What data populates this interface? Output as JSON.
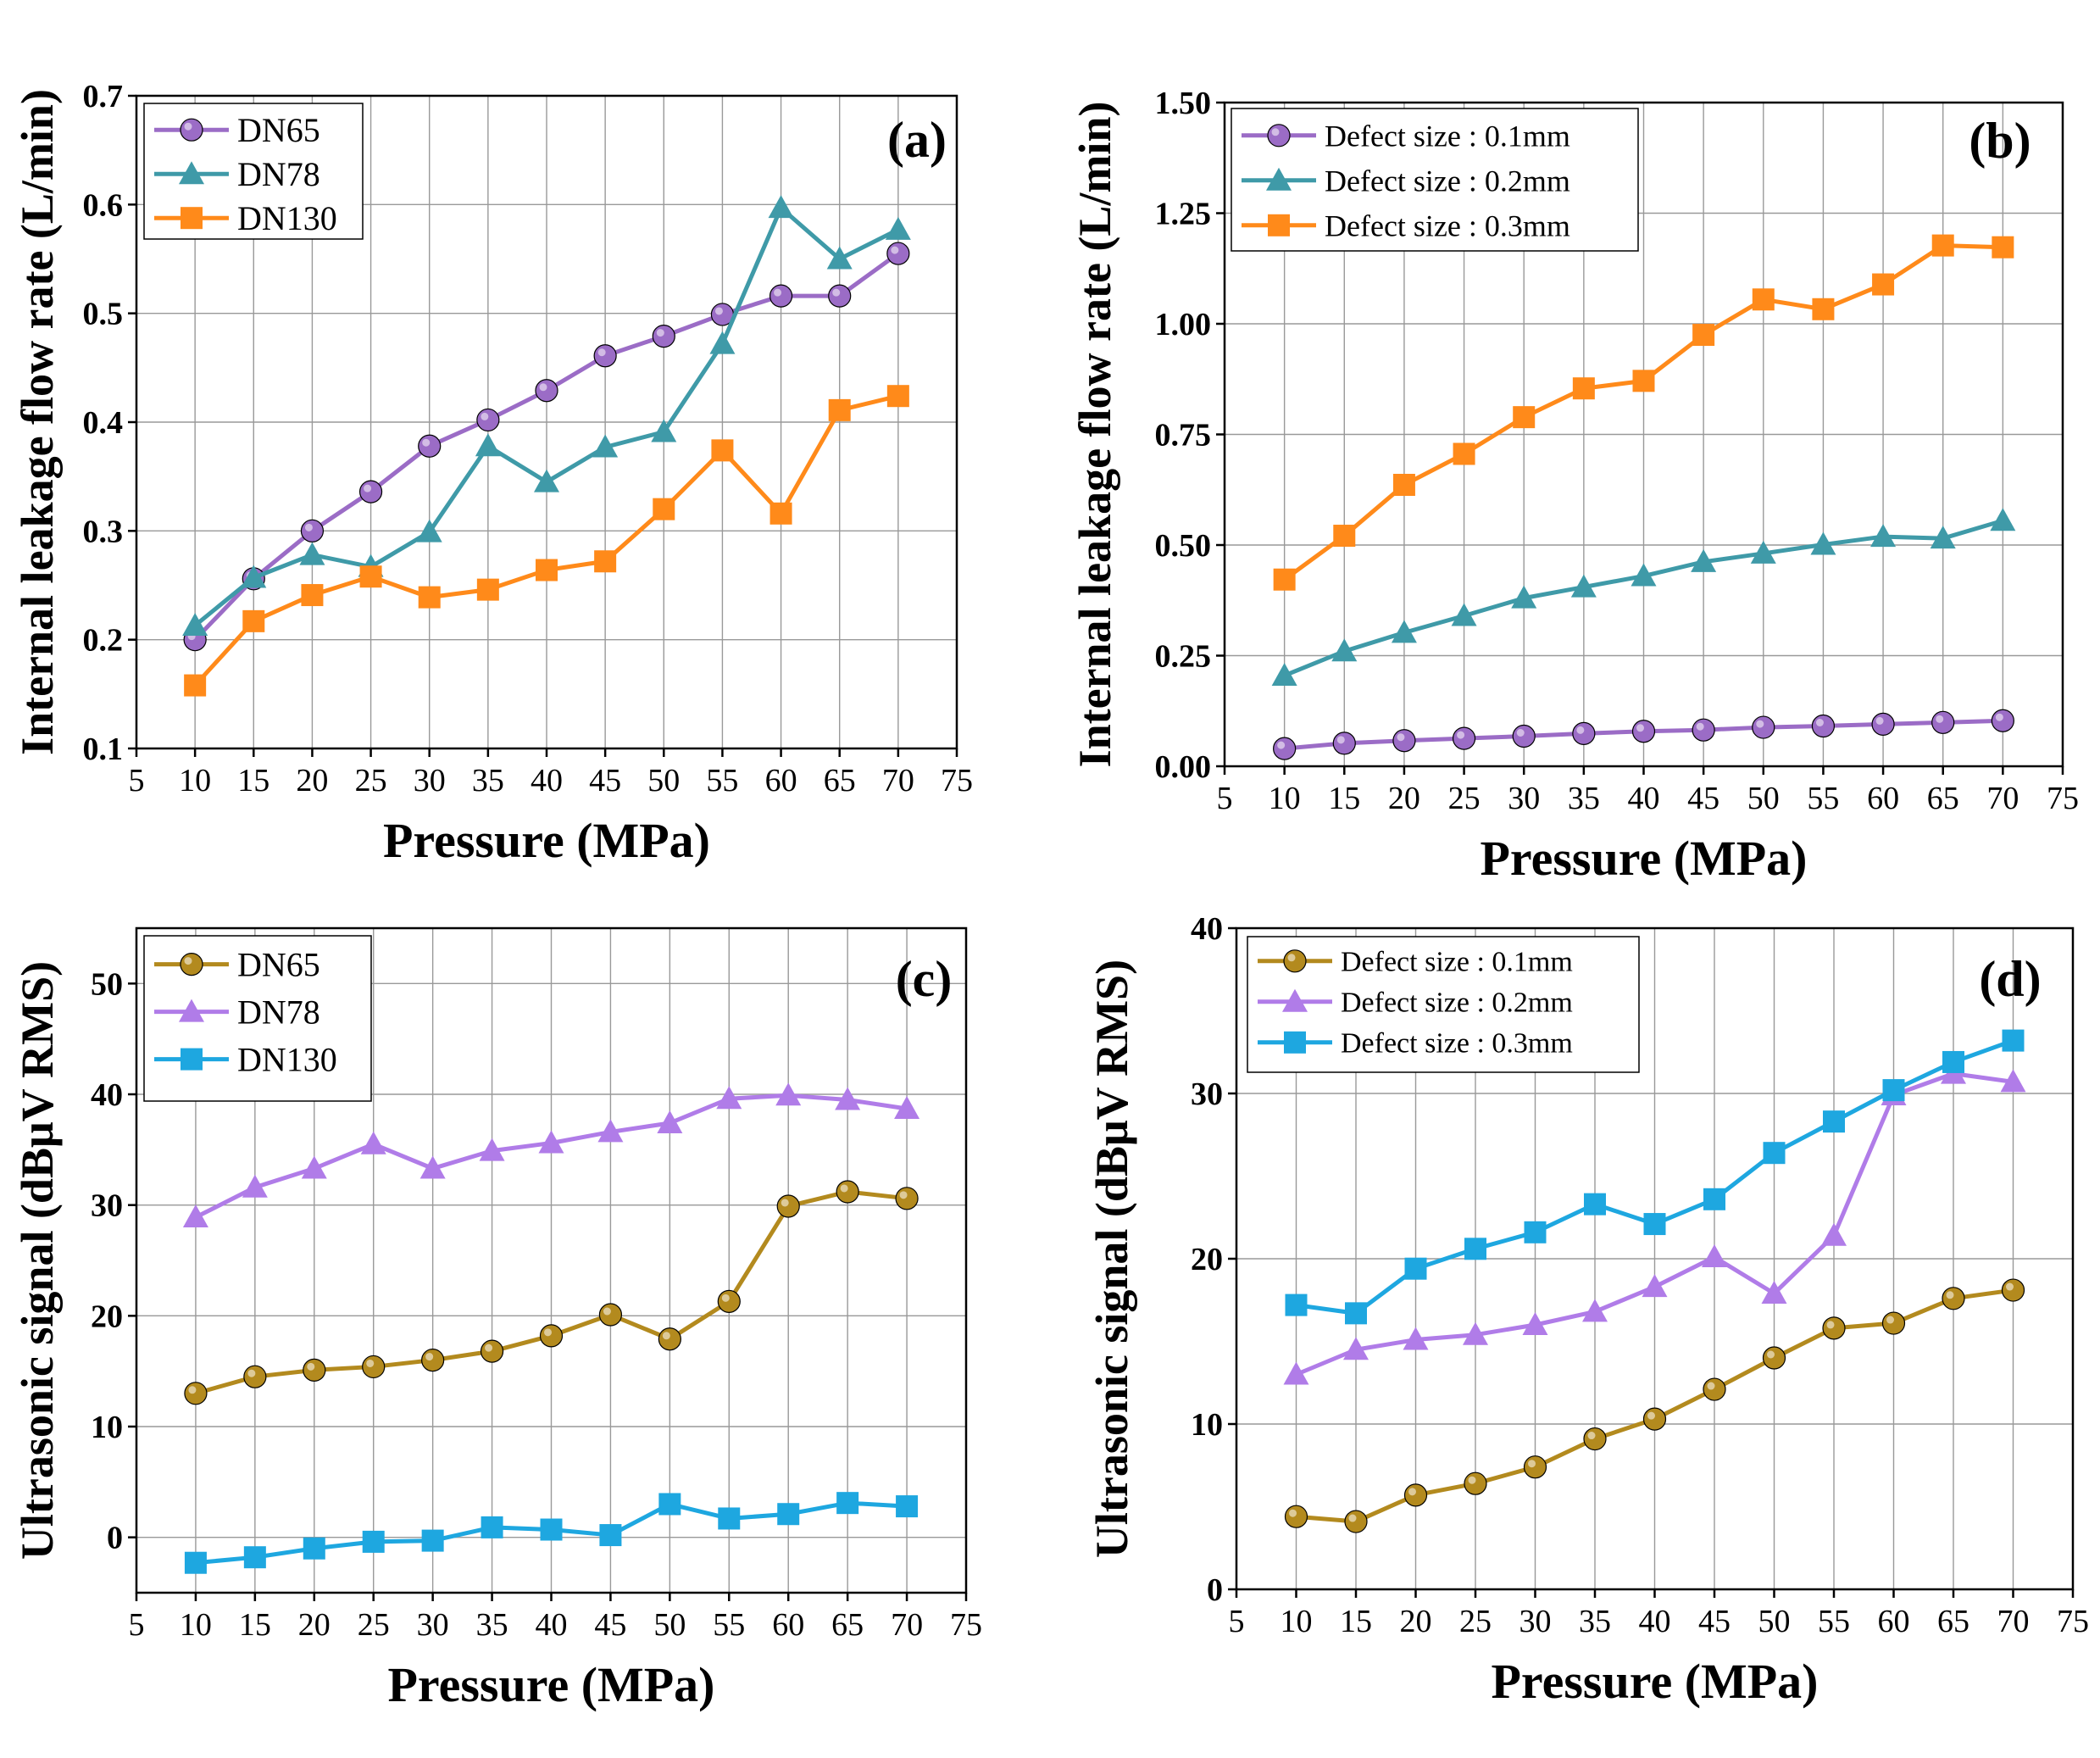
{
  "chart_data": [
    {
      "panel": "(a)",
      "type": "line",
      "xlabel": "Pressure (MPa)",
      "ylabel": "Internal leakage flow rate (L/min)",
      "xlim": [
        5,
        75
      ],
      "ylim": [
        0.1,
        0.7
      ],
      "xticks": [
        5,
        10,
        15,
        20,
        25,
        30,
        35,
        40,
        45,
        50,
        55,
        60,
        65,
        70,
        75
      ],
      "yticks": [
        0.1,
        0.2,
        0.3,
        0.4,
        0.5,
        0.6,
        0.7
      ],
      "ytick_labels": [
        "0.1",
        "0.2",
        "0.3",
        "0.4",
        "0.5",
        "0.6",
        "0.7"
      ],
      "grid": true,
      "legend_position": "top-left",
      "x": [
        10,
        15,
        20,
        25,
        30,
        35,
        40,
        45,
        50,
        55,
        60,
        65,
        70
      ],
      "series": [
        {
          "name": "DN65",
          "marker": "circle",
          "color": "#9B6CC6",
          "values": [
            0.2,
            0.256,
            0.3,
            0.336,
            0.378,
            0.402,
            0.429,
            0.461,
            0.479,
            0.499,
            0.516,
            0.516,
            0.555
          ]
        },
        {
          "name": "DN78",
          "marker": "triangle",
          "color": "#3F9AA8",
          "values": [
            0.213,
            0.257,
            0.278,
            0.267,
            0.299,
            0.378,
            0.345,
            0.377,
            0.391,
            0.472,
            0.597,
            0.55,
            0.577
          ]
        },
        {
          "name": "DN130",
          "marker": "square",
          "color": "#FF8A1A",
          "values": [
            0.158,
            0.217,
            0.241,
            0.258,
            0.239,
            0.246,
            0.264,
            0.272,
            0.32,
            0.374,
            0.316,
            0.411,
            0.424
          ]
        }
      ]
    },
    {
      "panel": "(b)",
      "type": "line",
      "xlabel": "Pressure (MPa)",
      "ylabel": "Internal leakage flow rate (L/min)",
      "xlim": [
        5,
        75
      ],
      "ylim": [
        0,
        1.5
      ],
      "xticks": [
        5,
        10,
        15,
        20,
        25,
        30,
        35,
        40,
        45,
        50,
        55,
        60,
        65,
        70,
        75
      ],
      "yticks": [
        0,
        0.25,
        0.5,
        0.75,
        1.0,
        1.25,
        1.5
      ],
      "ytick_labels": [
        "0.00",
        "0.25",
        "0.50",
        "0.75",
        "1.00",
        "1.25",
        "1.50"
      ],
      "grid": true,
      "legend_position": "top-left",
      "x": [
        10,
        15,
        20,
        25,
        30,
        35,
        40,
        45,
        50,
        55,
        60,
        65,
        70
      ],
      "series": [
        {
          "name": "Defect size : 0.1mm",
          "marker": "circle",
          "color": "#9B6CC6",
          "values": [
            0.04,
            0.052,
            0.058,
            0.063,
            0.068,
            0.074,
            0.079,
            0.082,
            0.088,
            0.091,
            0.095,
            0.099,
            0.103
          ]
        },
        {
          "name": "Defect size : 0.2mm",
          "marker": "triangle",
          "color": "#3F9AA8",
          "values": [
            0.205,
            0.26,
            0.302,
            0.34,
            0.38,
            0.405,
            0.43,
            0.462,
            0.481,
            0.501,
            0.519,
            0.515,
            0.555
          ]
        },
        {
          "name": "Defect size : 0.3mm",
          "marker": "square",
          "color": "#FF8A1A",
          "values": [
            0.422,
            0.521,
            0.636,
            0.706,
            0.789,
            0.854,
            0.871,
            0.975,
            1.055,
            1.033,
            1.089,
            1.177,
            1.173
          ]
        }
      ]
    },
    {
      "panel": "(c)",
      "type": "line",
      "xlabel": "Pressure (MPa)",
      "ylabel": "Ultrasonic signal (dBμV RMS)",
      "xlim": [
        5,
        75
      ],
      "ylim": [
        -5,
        55
      ],
      "xticks": [
        5,
        10,
        15,
        20,
        25,
        30,
        35,
        40,
        45,
        50,
        55,
        60,
        65,
        70,
        75
      ],
      "yticks": [
        0,
        10,
        20,
        30,
        40,
        50
      ],
      "ytick_labels": [
        "0",
        "10",
        "20",
        "30",
        "40",
        "50"
      ],
      "grid": true,
      "legend_position": "top-left",
      "x": [
        10,
        15,
        20,
        25,
        30,
        35,
        40,
        45,
        50,
        55,
        60,
        65,
        70
      ],
      "series": [
        {
          "name": "DN65",
          "marker": "circle",
          "color": "#B38A1E",
          "values": [
            13.0,
            14.5,
            15.1,
            15.4,
            16.0,
            16.8,
            18.2,
            20.1,
            17.9,
            21.3,
            29.9,
            31.2,
            30.6
          ]
        },
        {
          "name": "DN78",
          "marker": "triangle",
          "color": "#B07CE8",
          "values": [
            28.9,
            31.6,
            33.3,
            35.5,
            33.3,
            34.9,
            35.6,
            36.6,
            37.4,
            39.6,
            39.9,
            39.5,
            38.7
          ]
        },
        {
          "name": "DN130",
          "marker": "square",
          "color": "#1EA7E0",
          "values": [
            -2.3,
            -1.8,
            -1.0,
            -0.4,
            -0.3,
            0.9,
            0.7,
            0.2,
            3.0,
            1.7,
            2.1,
            3.1,
            2.8
          ]
        }
      ]
    },
    {
      "panel": "(d)",
      "type": "line",
      "xlabel": "Pressure (MPa)",
      "ylabel": "Ultrasonic signal (dBμV RMS)",
      "xlim": [
        5,
        75
      ],
      "ylim": [
        0,
        40
      ],
      "xticks": [
        5,
        10,
        15,
        20,
        25,
        30,
        35,
        40,
        45,
        50,
        55,
        60,
        65,
        70,
        75
      ],
      "yticks": [
        0,
        10,
        20,
        30,
        40
      ],
      "ytick_labels": [
        "0",
        "10",
        "20",
        "30",
        "40"
      ],
      "grid": true,
      "legend_position": "top-left",
      "x": [
        10,
        15,
        20,
        25,
        30,
        35,
        40,
        45,
        50,
        55,
        60,
        65,
        70
      ],
      "series": [
        {
          "name": "Defect size : 0.1mm",
          "marker": "circle",
          "color": "#B38A1E",
          "values": [
            4.4,
            4.1,
            5.7,
            6.4,
            7.4,
            9.1,
            10.3,
            12.1,
            14.0,
            15.8,
            16.1,
            17.6,
            18.1
          ]
        },
        {
          "name": "Defect size : 0.2mm",
          "marker": "triangle",
          "color": "#B07CE8",
          "values": [
            13.0,
            14.5,
            15.1,
            15.4,
            16.0,
            16.8,
            18.3,
            20.1,
            17.9,
            21.4,
            29.9,
            31.2,
            30.7
          ]
        },
        {
          "name": "Defect size : 0.3mm",
          "marker": "square",
          "color": "#1EA7E0",
          "values": [
            17.2,
            16.7,
            19.4,
            20.6,
            21.6,
            23.3,
            22.1,
            23.6,
            26.4,
            28.3,
            30.2,
            31.9,
            33.2
          ]
        }
      ]
    }
  ]
}
